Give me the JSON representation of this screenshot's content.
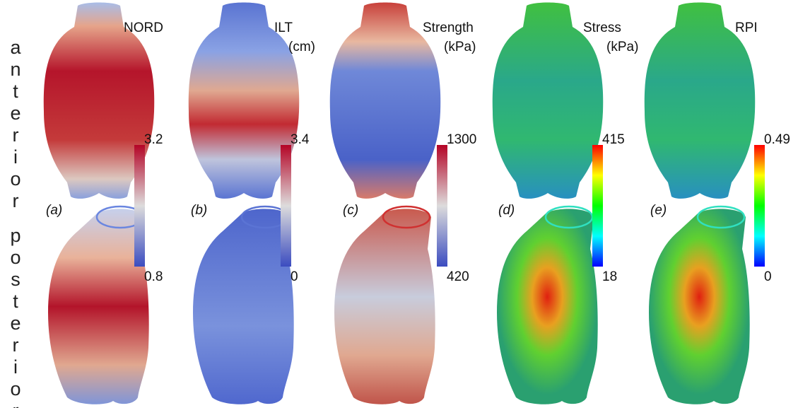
{
  "rows": [
    "anterior",
    "posterior"
  ],
  "panels": [
    {
      "letter": "(a)",
      "title": "NORD",
      "max": "3.2",
      "min": "0.8"
    },
    {
      "letter": "(b)",
      "title": "ILT",
      "unit": "(cm)",
      "max": "3.4",
      "min": "0"
    },
    {
      "letter": "(c)",
      "title": "Strength",
      "unit": "(kPa)",
      "max": "1300",
      "min": "420"
    },
    {
      "letter": "(d)",
      "title": "Stress",
      "unit": "(kPa)",
      "max": "415",
      "min": "18"
    },
    {
      "letter": "(e)",
      "title": "RPI",
      "max": "0.49",
      "min": "0"
    }
  ]
}
